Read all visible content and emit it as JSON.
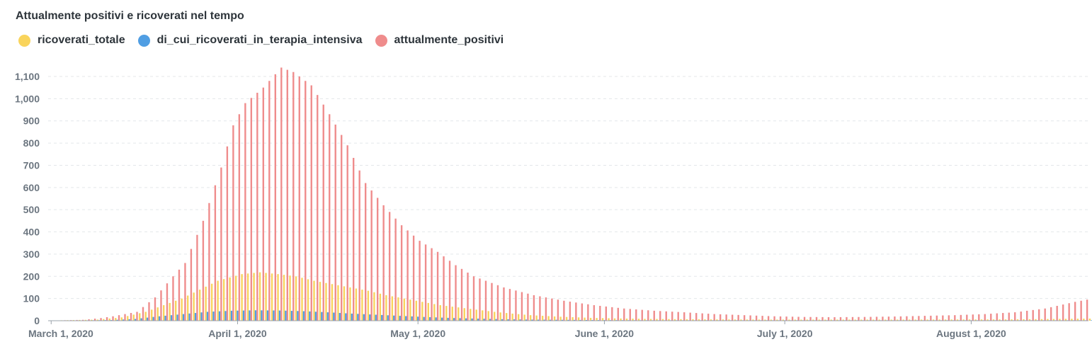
{
  "title": "Attualmente positivi e ricoverati nel tempo",
  "colors": {
    "ricoverati_totale": "#f9d45c",
    "terapia_intensiva": "#509ee3",
    "attualmente_positivi": "#ef8c8c",
    "grid": "#e4e7ea",
    "axis": "#6c7680"
  },
  "legend": [
    {
      "label": "ricoverati_totale",
      "color": "#f9d45c"
    },
    {
      "label": "di_cui_ricoverati_in_terapia_intensiva",
      "color": "#509ee3"
    },
    {
      "label": "attualmente_positivi",
      "color": "#ef8c8c"
    }
  ],
  "chart_data": {
    "type": "bar",
    "title": "Attualmente positivi e ricoverati nel tempo",
    "x_start": "2020-03-01",
    "x_end": "2020-08-20",
    "ylim": [
      0,
      1150
    ],
    "y_ticks": [
      0,
      100,
      200,
      300,
      400,
      500,
      600,
      700,
      800,
      900,
      "1,000",
      "1,100"
    ],
    "x_ticks": [
      "March 1, 2020",
      "April 1, 2020",
      "May 1, 2020",
      "June 1, 2020",
      "July 1, 2020",
      "August 1, 2020"
    ],
    "grid": true,
    "legend_position": "top-left",
    "series_anchors": [
      {
        "name": "attualmente_positivi",
        "anchors": [
          [
            0,
            1
          ],
          [
            5,
            4
          ],
          [
            8,
            12
          ],
          [
            10,
            20
          ],
          [
            14,
            40
          ],
          [
            17,
            105
          ],
          [
            20,
            200
          ],
          [
            22,
            260
          ],
          [
            25,
            450
          ],
          [
            28,
            690
          ],
          [
            30,
            880
          ],
          [
            32,
            980
          ],
          [
            35,
            1050
          ],
          [
            38,
            1140
          ],
          [
            40,
            1120
          ],
          [
            43,
            1060
          ],
          [
            46,
            930
          ],
          [
            49,
            790
          ],
          [
            52,
            620
          ],
          [
            55,
            520
          ],
          [
            58,
            430
          ],
          [
            61,
            360
          ],
          [
            64,
            310
          ],
          [
            67,
            250
          ],
          [
            70,
            200
          ],
          [
            75,
            150
          ],
          [
            80,
            115
          ],
          [
            85,
            90
          ],
          [
            90,
            70
          ],
          [
            95,
            55
          ],
          [
            100,
            45
          ],
          [
            105,
            38
          ],
          [
            110,
            30
          ],
          [
            115,
            25
          ],
          [
            120,
            20
          ],
          [
            125,
            17
          ],
          [
            130,
            16
          ],
          [
            135,
            17
          ],
          [
            140,
            19
          ],
          [
            145,
            22
          ],
          [
            150,
            25
          ],
          [
            155,
            30
          ],
          [
            160,
            38
          ],
          [
            165,
            55
          ],
          [
            170,
            85
          ],
          [
            172,
            95
          ],
          [
            174,
            130
          ],
          [
            172.5,
            150
          ]
        ]
      },
      {
        "name": "ricoverati_totale",
        "anchors": [
          [
            0,
            1
          ],
          [
            8,
            5
          ],
          [
            12,
            15
          ],
          [
            16,
            40
          ],
          [
            19,
            70
          ],
          [
            22,
            100
          ],
          [
            25,
            140
          ],
          [
            28,
            180
          ],
          [
            32,
            210
          ],
          [
            35,
            218
          ],
          [
            38,
            210
          ],
          [
            41,
            200
          ],
          [
            44,
            180
          ],
          [
            47,
            165
          ],
          [
            50,
            150
          ],
          [
            53,
            135
          ],
          [
            56,
            115
          ],
          [
            59,
            100
          ],
          [
            62,
            85
          ],
          [
            65,
            70
          ],
          [
            68,
            60
          ],
          [
            71,
            50
          ],
          [
            74,
            40
          ],
          [
            77,
            32
          ],
          [
            80,
            25
          ],
          [
            85,
            18
          ],
          [
            90,
            13
          ],
          [
            95,
            10
          ],
          [
            100,
            8
          ],
          [
            110,
            6
          ],
          [
            120,
            5
          ],
          [
            140,
            5
          ],
          [
            160,
            6
          ],
          [
            174,
            10
          ]
        ]
      },
      {
        "name": "di_cui_ricoverati_in_terapia_intensiva",
        "anchors": [
          [
            0,
            0
          ],
          [
            10,
            3
          ],
          [
            14,
            8
          ],
          [
            18,
            20
          ],
          [
            22,
            30
          ],
          [
            26,
            40
          ],
          [
            30,
            45
          ],
          [
            34,
            47
          ],
          [
            38,
            46
          ],
          [
            42,
            43
          ],
          [
            46,
            38
          ],
          [
            50,
            32
          ],
          [
            54,
            27
          ],
          [
            58,
            22
          ],
          [
            62,
            17
          ],
          [
            66,
            13
          ],
          [
            70,
            10
          ],
          [
            75,
            7
          ],
          [
            80,
            5
          ],
          [
            90,
            3
          ],
          [
            100,
            2
          ],
          [
            174,
            2
          ]
        ]
      }
    ]
  }
}
